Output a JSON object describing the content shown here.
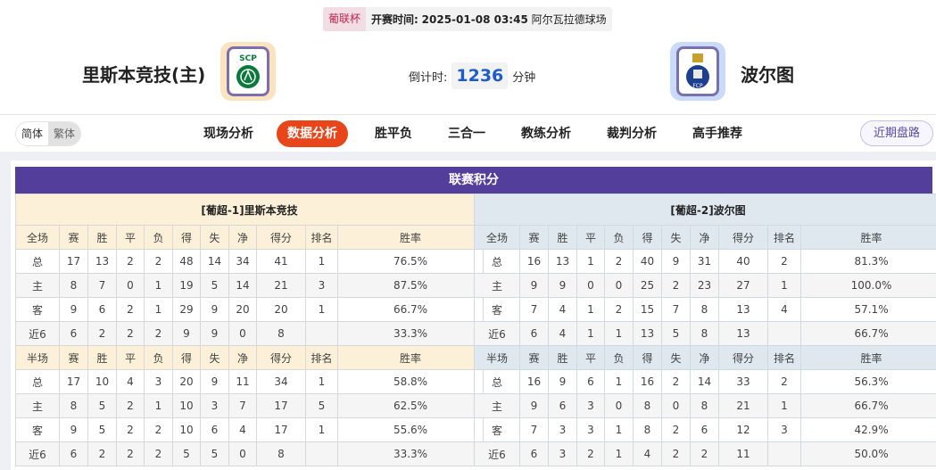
{
  "match": {
    "cup": "葡联杯",
    "time_label": "开赛时间:",
    "time": "2025-01-08 03:45",
    "venue": "阿尔瓦拉德球场"
  },
  "home": {
    "name": "里斯本竞技(主)",
    "logo_text": "SCP"
  },
  "away": {
    "name": "波尔图",
    "logo_text": "FCP"
  },
  "countdown": {
    "label": "倒计时:",
    "value": "1236",
    "unit": "分钟"
  },
  "lang": {
    "simplified": "简体",
    "traditional": "繁体"
  },
  "tabs": [
    {
      "label": "现场分析"
    },
    {
      "label": "数据分析",
      "active": true
    },
    {
      "label": "胜平负"
    },
    {
      "label": "三合一"
    },
    {
      "label": "教练分析"
    },
    {
      "label": "裁判分析"
    },
    {
      "label": "高手推荐"
    }
  ],
  "recent_button": "近期盘路",
  "standings": {
    "title": "联赛积分",
    "columns": [
      "赛",
      "胜",
      "平",
      "负",
      "得",
      "失",
      "净",
      "得分",
      "排名",
      "胜率"
    ],
    "colors": {
      "header": "#533f9b",
      "home": "#d00000",
      "away": "#0000d0"
    },
    "teams": [
      {
        "header": "[葡超-1]里斯本竞技",
        "full": {
          "label": "全场",
          "rows": [
            [
              "总",
              "17",
              "13",
              "2",
              "2",
              "48",
              "14",
              "34",
              "41",
              "1",
              "76.5%"
            ],
            [
              "主",
              "8",
              "7",
              "0",
              "1",
              "19",
              "5",
              "14",
              "21",
              "3",
              "87.5%"
            ],
            [
              "客",
              "9",
              "6",
              "2",
              "1",
              "29",
              "9",
              "20",
              "20",
              "1",
              "66.7%"
            ],
            [
              "近6",
              "6",
              "2",
              "2",
              "2",
              "9",
              "9",
              "0",
              "8",
              "",
              "33.3%"
            ]
          ]
        },
        "half": {
          "label": "半场",
          "rows": [
            [
              "总",
              "17",
              "10",
              "4",
              "3",
              "20",
              "9",
              "11",
              "34",
              "1",
              "58.8%"
            ],
            [
              "主",
              "8",
              "5",
              "2",
              "1",
              "10",
              "3",
              "7",
              "17",
              "5",
              "62.5%"
            ],
            [
              "客",
              "9",
              "5",
              "2",
              "2",
              "10",
              "6",
              "4",
              "17",
              "1",
              "55.6%"
            ],
            [
              "近6",
              "6",
              "2",
              "2",
              "2",
              "5",
              "5",
              "0",
              "8",
              "",
              "33.3%"
            ]
          ]
        }
      },
      {
        "header": "[葡超-2]波尔图",
        "full": {
          "label": "全场",
          "rows": [
            [
              "总",
              "16",
              "13",
              "1",
              "2",
              "40",
              "9",
              "31",
              "40",
              "2",
              "81.3%"
            ],
            [
              "主",
              "9",
              "9",
              "0",
              "0",
              "25",
              "2",
              "23",
              "27",
              "1",
              "100.0%"
            ],
            [
              "客",
              "7",
              "4",
              "1",
              "2",
              "15",
              "7",
              "8",
              "13",
              "4",
              "57.1%"
            ],
            [
              "近6",
              "6",
              "4",
              "1",
              "1",
              "13",
              "5",
              "8",
              "13",
              "",
              "66.7%"
            ]
          ]
        },
        "half": {
          "label": "半场",
          "rows": [
            [
              "总",
              "16",
              "9",
              "6",
              "1",
              "16",
              "2",
              "14",
              "33",
              "2",
              "56.3%"
            ],
            [
              "主",
              "9",
              "6",
              "3",
              "0",
              "8",
              "0",
              "8",
              "21",
              "1",
              "66.7%"
            ],
            [
              "客",
              "7",
              "3",
              "3",
              "1",
              "8",
              "2",
              "6",
              "12",
              "3",
              "42.9%"
            ],
            [
              "近6",
              "6",
              "3",
              "2",
              "1",
              "4",
              "2",
              "2",
              "11",
              "",
              "50.0%"
            ]
          ]
        }
      }
    ]
  }
}
